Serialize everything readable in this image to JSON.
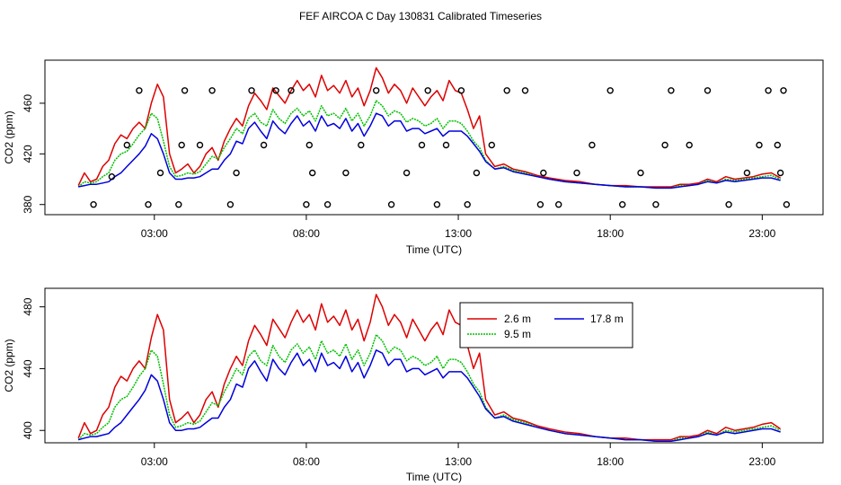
{
  "title": "FEF AIRCOA C  Day 130831  Calibrated Timeseries",
  "colors": {
    "red": "#dd0000",
    "green": "#00c000",
    "blue": "#0000dd",
    "axis": "#000000"
  },
  "chart_data": [
    {
      "type": "line",
      "xlabel": "Time (UTC)",
      "ylabel": "CO2 (ppm)",
      "xlim": [
        -0.6,
        25.0
      ],
      "ylim": [
        372,
        494
      ],
      "xticks": [
        3,
        8,
        13,
        18,
        23
      ],
      "xtick_labels": [
        "03:00",
        "08:00",
        "13:00",
        "18:00",
        "23:00"
      ],
      "yticks": [
        380,
        420,
        460
      ],
      "ytick_labels": [
        "380",
        "420",
        "460"
      ],
      "series": [
        {
          "name": "2.6 m",
          "color": "red",
          "x": [
            0.5,
            0.7,
            0.9,
            1.1,
            1.3,
            1.5,
            1.7,
            1.9,
            2.1,
            2.3,
            2.5,
            2.7,
            2.9,
            3.1,
            3.3,
            3.5,
            3.7,
            3.9,
            4.1,
            4.3,
            4.5,
            4.7,
            4.9,
            5.1,
            5.3,
            5.5,
            5.7,
            5.9,
            6.1,
            6.3,
            6.5,
            6.7,
            6.9,
            7.1,
            7.3,
            7.5,
            7.7,
            7.9,
            8.1,
            8.3,
            8.5,
            8.7,
            8.9,
            9.1,
            9.3,
            9.5,
            9.7,
            9.9,
            10.1,
            10.3,
            10.5,
            10.7,
            10.9,
            11.1,
            11.3,
            11.5,
            11.7,
            11.9,
            12.1,
            12.3,
            12.5,
            12.7,
            12.9,
            13.1,
            13.3,
            13.5,
            13.7,
            13.9,
            14.2,
            14.5,
            14.8,
            15.2,
            15.6,
            16.0,
            16.5,
            17.0,
            17.5,
            18.0,
            18.5,
            19.0,
            19.5,
            20.0,
            20.3,
            20.6,
            20.9,
            21.2,
            21.5,
            21.8,
            22.1,
            22.4,
            22.7,
            23.0,
            23.3,
            23.6
          ],
          "y": [
            395,
            405,
            398,
            400,
            410,
            415,
            428,
            435,
            432,
            440,
            445,
            440,
            460,
            475,
            465,
            420,
            405,
            408,
            412,
            405,
            410,
            420,
            425,
            415,
            430,
            440,
            448,
            442,
            458,
            468,
            462,
            455,
            472,
            466,
            460,
            470,
            478,
            470,
            475,
            465,
            482,
            470,
            474,
            468,
            478,
            465,
            472,
            458,
            470,
            488,
            480,
            468,
            475,
            470,
            460,
            472,
            465,
            458,
            465,
            470,
            462,
            478,
            470,
            468,
            455,
            440,
            450,
            420,
            410,
            412,
            408,
            406,
            403,
            401,
            399,
            398,
            396,
            395,
            395,
            394,
            394,
            394,
            396,
            396,
            397,
            400,
            398,
            402,
            400,
            401,
            402,
            404,
            405,
            401
          ]
        },
        {
          "name": "9.5 m",
          "color": "green",
          "x": [
            0.5,
            0.7,
            0.9,
            1.1,
            1.3,
            1.5,
            1.7,
            1.9,
            2.1,
            2.3,
            2.5,
            2.7,
            2.9,
            3.1,
            3.3,
            3.5,
            3.7,
            3.9,
            4.1,
            4.3,
            4.5,
            4.7,
            4.9,
            5.1,
            5.3,
            5.5,
            5.7,
            5.9,
            6.1,
            6.3,
            6.5,
            6.7,
            6.9,
            7.1,
            7.3,
            7.5,
            7.7,
            7.9,
            8.1,
            8.3,
            8.5,
            8.7,
            8.9,
            9.1,
            9.3,
            9.5,
            9.7,
            9.9,
            10.1,
            10.3,
            10.5,
            10.7,
            10.9,
            11.1,
            11.3,
            11.5,
            11.7,
            11.9,
            12.1,
            12.3,
            12.5,
            12.7,
            12.9,
            13.1,
            13.3,
            13.5,
            13.7,
            13.9,
            14.2,
            14.5,
            14.8,
            15.2,
            15.6,
            16.0,
            16.5,
            17.0,
            17.5,
            18.0,
            18.5,
            19.0,
            19.5,
            20.0,
            20.3,
            20.6,
            20.9,
            21.2,
            21.5,
            21.8,
            22.1,
            22.4,
            22.7,
            23.0,
            23.3,
            23.6
          ],
          "y": [
            394,
            398,
            397,
            398,
            402,
            405,
            415,
            420,
            422,
            428,
            435,
            440,
            452,
            448,
            430,
            410,
            402,
            403,
            405,
            404,
            406,
            412,
            418,
            416,
            425,
            432,
            440,
            436,
            448,
            452,
            445,
            442,
            455,
            448,
            444,
            452,
            456,
            450,
            454,
            446,
            458,
            450,
            452,
            448,
            456,
            446,
            452,
            442,
            450,
            462,
            458,
            450,
            454,
            452,
            445,
            448,
            446,
            442,
            444,
            448,
            440,
            446,
            446,
            444,
            438,
            430,
            425,
            415,
            408,
            410,
            407,
            405,
            402,
            400,
            398,
            397,
            396,
            395,
            394,
            394,
            393,
            393,
            395,
            395,
            396,
            399,
            397,
            400,
            399,
            400,
            401,
            402,
            403,
            400
          ]
        },
        {
          "name": "17.8 m",
          "color": "blue",
          "x": [
            0.5,
            0.7,
            0.9,
            1.1,
            1.3,
            1.5,
            1.7,
            1.9,
            2.1,
            2.3,
            2.5,
            2.7,
            2.9,
            3.1,
            3.3,
            3.5,
            3.7,
            3.9,
            4.1,
            4.3,
            4.5,
            4.7,
            4.9,
            5.1,
            5.3,
            5.5,
            5.7,
            5.9,
            6.1,
            6.3,
            6.5,
            6.7,
            6.9,
            7.1,
            7.3,
            7.5,
            7.7,
            7.9,
            8.1,
            8.3,
            8.5,
            8.7,
            8.9,
            9.1,
            9.3,
            9.5,
            9.7,
            9.9,
            10.1,
            10.3,
            10.5,
            10.7,
            10.9,
            11.1,
            11.3,
            11.5,
            11.7,
            11.9,
            12.1,
            12.3,
            12.5,
            12.7,
            12.9,
            13.1,
            13.3,
            13.5,
            13.7,
            13.9,
            14.2,
            14.5,
            14.8,
            15.2,
            15.6,
            16.0,
            16.5,
            17.0,
            17.5,
            18.0,
            18.5,
            19.0,
            19.5,
            20.0,
            20.3,
            20.6,
            20.9,
            21.2,
            21.5,
            21.8,
            22.1,
            22.4,
            22.7,
            23.0,
            23.3,
            23.6
          ],
          "y": [
            394,
            395,
            396,
            396,
            397,
            398,
            402,
            405,
            410,
            415,
            420,
            426,
            436,
            432,
            420,
            405,
            400,
            400,
            401,
            401,
            402,
            405,
            408,
            408,
            415,
            420,
            430,
            428,
            440,
            445,
            438,
            432,
            446,
            440,
            436,
            444,
            450,
            442,
            446,
            438,
            450,
            442,
            444,
            440,
            448,
            438,
            444,
            434,
            442,
            452,
            450,
            442,
            446,
            446,
            438,
            440,
            440,
            436,
            438,
            440,
            434,
            438,
            438,
            438,
            434,
            428,
            422,
            414,
            408,
            409,
            406,
            404,
            402,
            400,
            398,
            397,
            396,
            395,
            394,
            394,
            393,
            393,
            394,
            395,
            396,
            398,
            397,
            399,
            398,
            399,
            400,
            401,
            401,
            399
          ]
        }
      ],
      "points": {
        "x": [
          1.0,
          1.6,
          2.1,
          2.5,
          2.8,
          3.2,
          3.8,
          3.9,
          4.0,
          4.5,
          4.9,
          5.5,
          5.7,
          6.2,
          6.6,
          7.0,
          7.5,
          8.0,
          8.1,
          8.2,
          8.7,
          9.3,
          9.8,
          10.3,
          10.8,
          11.3,
          11.8,
          12.0,
          12.3,
          12.6,
          13.1,
          13.3,
          13.6,
          14.1,
          14.6,
          15.2,
          15.7,
          15.8,
          16.3,
          16.9,
          17.4,
          18.0,
          18.4,
          19.0,
          19.5,
          19.8,
          20.0,
          20.6,
          21.2,
          21.9,
          22.5,
          22.9,
          23.2,
          23.5,
          23.6,
          23.7,
          23.8
        ],
        "y": [
          380,
          402,
          427,
          470,
          380,
          405,
          380,
          427,
          470,
          427,
          470,
          380,
          405,
          470,
          427,
          470,
          470,
          380,
          427,
          405,
          380,
          405,
          427,
          470,
          380,
          405,
          427,
          470,
          380,
          427,
          470,
          380,
          405,
          427,
          470,
          470,
          380,
          405,
          380,
          405,
          427,
          470,
          380,
          405,
          380,
          427,
          470,
          427,
          470,
          380,
          405,
          427,
          470,
          427,
          405,
          470,
          380
        ]
      }
    },
    {
      "type": "line",
      "xlabel": "Time (UTC)",
      "ylabel": "CO2 (ppm)",
      "xlim": [
        -0.6,
        25.0
      ],
      "ylim": [
        392,
        492
      ],
      "xticks": [
        3,
        8,
        13,
        18,
        23
      ],
      "xtick_labels": [
        "03:00",
        "08:00",
        "13:00",
        "18:00",
        "23:00"
      ],
      "yticks": [
        400,
        440,
        480
      ],
      "ytick_labels": [
        "400",
        "440",
        "480"
      ],
      "legend": {
        "placement": "top-center",
        "entries": [
          "2.6 m",
          "17.8 m",
          "9.5 m"
        ]
      },
      "series_ref": "same as panel 1"
    }
  ]
}
